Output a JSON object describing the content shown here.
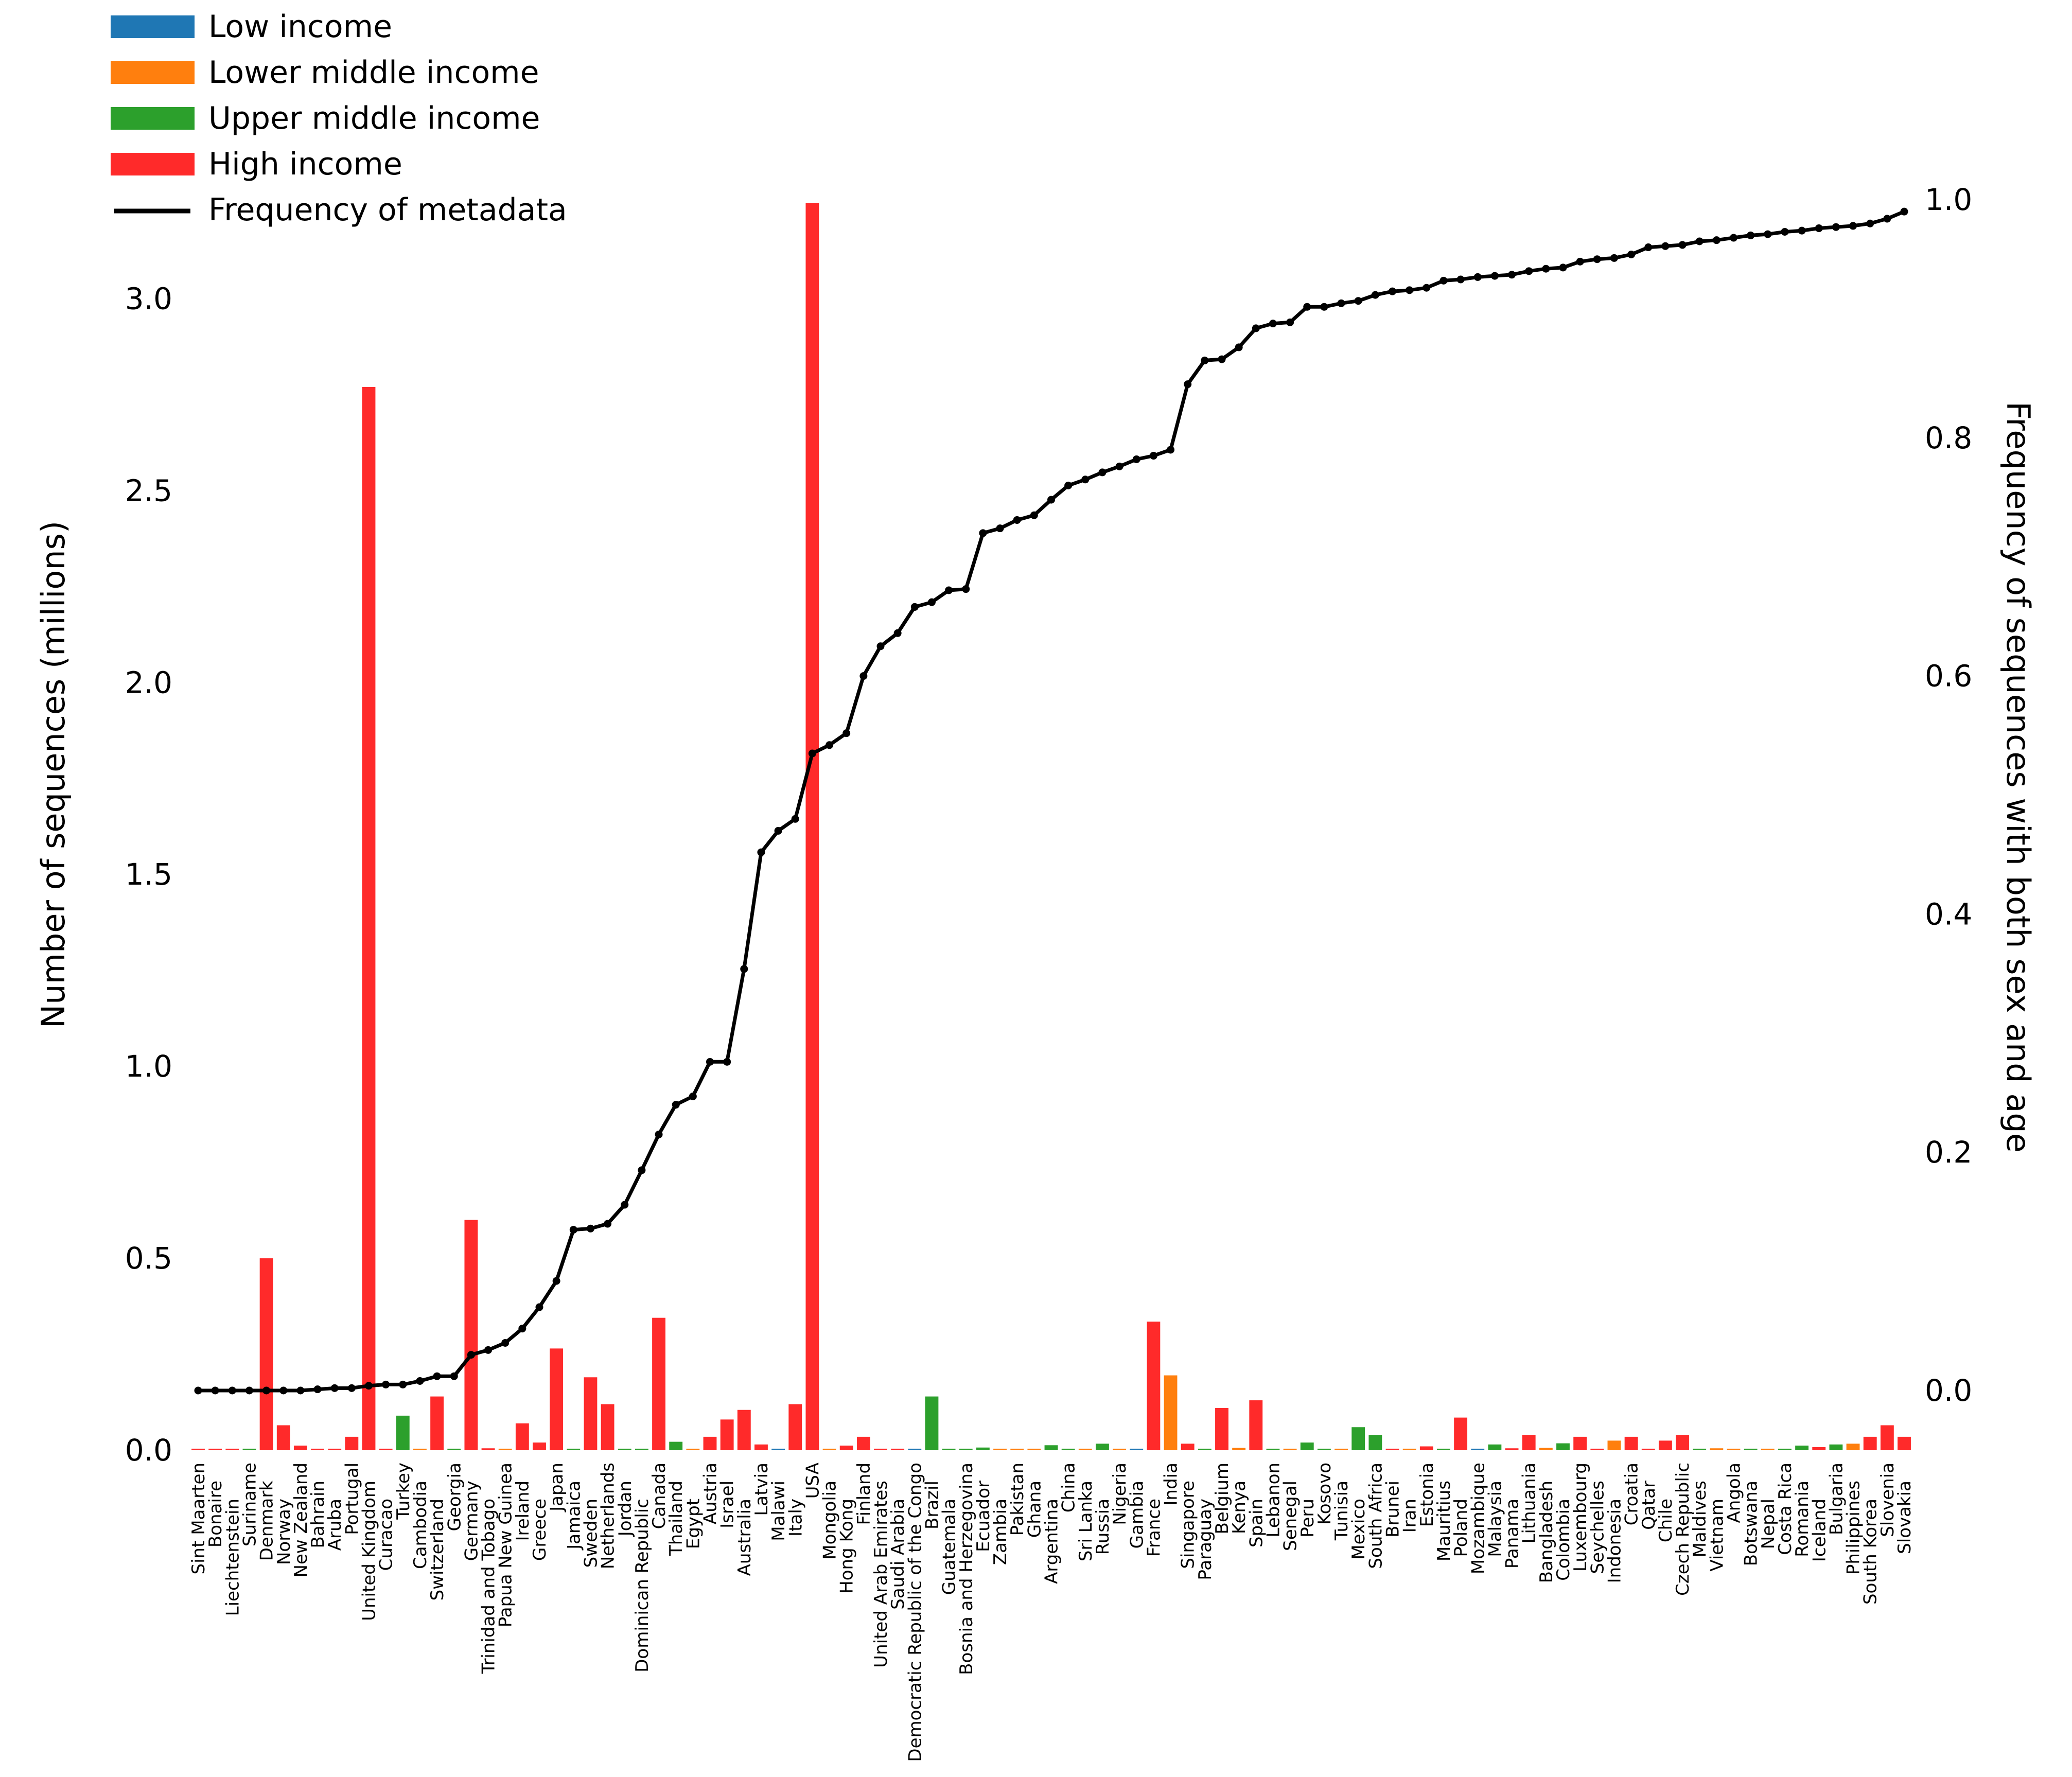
{
  "chart_data": {
    "type": "bar",
    "title": "",
    "xlabel": "",
    "ylabel": "Number of sequences (millions)",
    "y2label": "Frequency of sequences with both sex and age",
    "ylim": [
      0,
      3.25
    ],
    "y2lim": [
      -0.05,
      1.0
    ],
    "yticks": [
      "0.0",
      "0.5",
      "1.0",
      "1.5",
      "2.0",
      "2.5",
      "3.0"
    ],
    "y2ticks": [
      "0.0",
      "0.2",
      "0.4",
      "0.6",
      "0.8",
      "1.0"
    ],
    "grid": false,
    "legend_position": "top-left",
    "legend": [
      {
        "label": "Low income",
        "color": "#1f77b4",
        "kind": "bar"
      },
      {
        "label": "Lower middle income",
        "color": "#ff7f0e",
        "kind": "bar"
      },
      {
        "label": "Upper middle income",
        "color": "#2ca02c",
        "kind": "bar"
      },
      {
        "label": "High income",
        "color": "#ff2a2a",
        "kind": "bar"
      },
      {
        "label": "Frequency of metadata",
        "color": "#000000",
        "kind": "line"
      }
    ],
    "income_colors": {
      "L": "#1f77b4",
      "LM": "#ff7f0e",
      "UM": "#2ca02c",
      "H": "#ff2a2a"
    },
    "line_series": {
      "name": "Frequency of metadata",
      "axis": "right"
    },
    "countries": [
      {
        "name": "Sint Maarten",
        "income": "H",
        "value": 0.003,
        "cum": 0.0
      },
      {
        "name": "Bonaire",
        "income": "H",
        "value": 0.001,
        "cum": 0.0
      },
      {
        "name": "Liechtenstein",
        "income": "H",
        "value": 0.001,
        "cum": 0.0
      },
      {
        "name": "Suriname",
        "income": "UM",
        "value": 0.002,
        "cum": 0.0
      },
      {
        "name": "Denmark",
        "income": "H",
        "value": 0.5,
        "cum": 0.0
      },
      {
        "name": "Norway",
        "income": "H",
        "value": 0.065,
        "cum": 0.0
      },
      {
        "name": "New Zealand",
        "income": "H",
        "value": 0.012,
        "cum": 0.0
      },
      {
        "name": "Bahrain",
        "income": "H",
        "value": 0.004,
        "cum": 0.001
      },
      {
        "name": "Aruba",
        "income": "H",
        "value": 0.003,
        "cum": 0.002
      },
      {
        "name": "Portugal",
        "income": "H",
        "value": 0.035,
        "cum": 0.002
      },
      {
        "name": "United Kingdom",
        "income": "H",
        "value": 2.77,
        "cum": 0.004
      },
      {
        "name": "Curacao",
        "income": "H",
        "value": 0.003,
        "cum": 0.005
      },
      {
        "name": "Turkey",
        "income": "UM",
        "value": 0.09,
        "cum": 0.005
      },
      {
        "name": "Cambodia",
        "income": "LM",
        "value": 0.003,
        "cum": 0.008
      },
      {
        "name": "Switzerland",
        "income": "H",
        "value": 0.14,
        "cum": 0.012
      },
      {
        "name": "Georgia",
        "income": "UM",
        "value": 0.003,
        "cum": 0.012
      },
      {
        "name": "Germany",
        "income": "H",
        "value": 0.6,
        "cum": 0.03
      },
      {
        "name": "Trinidad and Tobago",
        "income": "H",
        "value": 0.005,
        "cum": 0.034
      },
      {
        "name": "Papua New Guinea",
        "income": "LM",
        "value": 0.002,
        "cum": 0.04
      },
      {
        "name": "Ireland",
        "income": "H",
        "value": 0.07,
        "cum": 0.052
      },
      {
        "name": "Greece",
        "income": "H",
        "value": 0.02,
        "cum": 0.07
      },
      {
        "name": "Japan",
        "income": "H",
        "value": 0.265,
        "cum": 0.092
      },
      {
        "name": "Jamaica",
        "income": "UM",
        "value": 0.003,
        "cum": 0.135
      },
      {
        "name": "Sweden",
        "income": "H",
        "value": 0.19,
        "cum": 0.136
      },
      {
        "name": "Netherlands",
        "income": "H",
        "value": 0.12,
        "cum": 0.14
      },
      {
        "name": "Jordan",
        "income": "UM",
        "value": 0.003,
        "cum": 0.156
      },
      {
        "name": "Dominican Republic",
        "income": "UM",
        "value": 0.003,
        "cum": 0.185
      },
      {
        "name": "Canada",
        "income": "H",
        "value": 0.345,
        "cum": 0.215
      },
      {
        "name": "Thailand",
        "income": "UM",
        "value": 0.022,
        "cum": 0.24
      },
      {
        "name": "Egypt",
        "income": "LM",
        "value": 0.004,
        "cum": 0.247
      },
      {
        "name": "Austria",
        "income": "H",
        "value": 0.035,
        "cum": 0.276
      },
      {
        "name": "Israel",
        "income": "H",
        "value": 0.08,
        "cum": 0.276
      },
      {
        "name": "Australia",
        "income": "H",
        "value": 0.105,
        "cum": 0.354
      },
      {
        "name": "Latvia",
        "income": "H",
        "value": 0.015,
        "cum": 0.452
      },
      {
        "name": "Malawi",
        "income": "L",
        "value": 0.002,
        "cum": 0.47
      },
      {
        "name": "Italy",
        "income": "H",
        "value": 0.12,
        "cum": 0.48
      },
      {
        "name": "USA",
        "income": "H",
        "value": 3.25,
        "cum": 0.535
      },
      {
        "name": "Mongolia",
        "income": "LM",
        "value": 0.004,
        "cum": 0.542
      },
      {
        "name": "Hong Kong",
        "income": "H",
        "value": 0.012,
        "cum": 0.552
      },
      {
        "name": "Finland",
        "income": "H",
        "value": 0.035,
        "cum": 0.6
      },
      {
        "name": "United Arab Emirates",
        "income": "H",
        "value": 0.003,
        "cum": 0.625
      },
      {
        "name": "Saudi Arabia",
        "income": "H",
        "value": 0.003,
        "cum": 0.636
      },
      {
        "name": "Democratic Republic of the Congo",
        "income": "L",
        "value": 0.002,
        "cum": 0.658
      },
      {
        "name": "Brazil",
        "income": "UM",
        "value": 0.14,
        "cum": 0.662
      },
      {
        "name": "Guatemala",
        "income": "UM",
        "value": 0.003,
        "cum": 0.672
      },
      {
        "name": "Bosnia and Herzegovina",
        "income": "UM",
        "value": 0.002,
        "cum": 0.673
      },
      {
        "name": "Ecuador",
        "income": "UM",
        "value": 0.007,
        "cum": 0.72
      },
      {
        "name": "Zambia",
        "income": "LM",
        "value": 0.003,
        "cum": 0.724
      },
      {
        "name": "Pakistan",
        "income": "LM",
        "value": 0.003,
        "cum": 0.731
      },
      {
        "name": "Ghana",
        "income": "LM",
        "value": 0.004,
        "cum": 0.735
      },
      {
        "name": "Argentina",
        "income": "UM",
        "value": 0.013,
        "cum": 0.748
      },
      {
        "name": "China",
        "income": "UM",
        "value": 0.004,
        "cum": 0.76
      },
      {
        "name": "Sri Lanka",
        "income": "LM",
        "value": 0.003,
        "cum": 0.765
      },
      {
        "name": "Russia",
        "income": "UM",
        "value": 0.017,
        "cum": 0.771
      },
      {
        "name": "Nigeria",
        "income": "LM",
        "value": 0.004,
        "cum": 0.776
      },
      {
        "name": "Gambia",
        "income": "L",
        "value": 0.002,
        "cum": 0.782
      },
      {
        "name": "France",
        "income": "H",
        "value": 0.335,
        "cum": 0.785
      },
      {
        "name": "India",
        "income": "LM",
        "value": 0.195,
        "cum": 0.79
      },
      {
        "name": "Singapore",
        "income": "H",
        "value": 0.017,
        "cum": 0.845
      },
      {
        "name": "Paraguay",
        "income": "UM",
        "value": 0.004,
        "cum": 0.865
      },
      {
        "name": "Belgium",
        "income": "H",
        "value": 0.11,
        "cum": 0.866
      },
      {
        "name": "Kenya",
        "income": "LM",
        "value": 0.006,
        "cum": 0.876
      },
      {
        "name": "Spain",
        "income": "H",
        "value": 0.13,
        "cum": 0.892
      },
      {
        "name": "Lebanon",
        "income": "UM",
        "value": 0.003,
        "cum": 0.896
      },
      {
        "name": "Senegal",
        "income": "LM",
        "value": 0.003,
        "cum": 0.897
      },
      {
        "name": "Peru",
        "income": "UM",
        "value": 0.02,
        "cum": 0.91
      },
      {
        "name": "Kosovo",
        "income": "UM",
        "value": 0.003,
        "cum": 0.91
      },
      {
        "name": "Tunisia",
        "income": "LM",
        "value": 0.003,
        "cum": 0.913
      },
      {
        "name": "Mexico",
        "income": "UM",
        "value": 0.06,
        "cum": 0.915
      },
      {
        "name": "South Africa",
        "income": "UM",
        "value": 0.04,
        "cum": 0.92
      },
      {
        "name": "Brunei",
        "income": "H",
        "value": 0.003,
        "cum": 0.923
      },
      {
        "name": "Iran",
        "income": "LM",
        "value": 0.003,
        "cum": 0.924
      },
      {
        "name": "Estonia",
        "income": "H",
        "value": 0.01,
        "cum": 0.926
      },
      {
        "name": "Mauritius",
        "income": "UM",
        "value": 0.003,
        "cum": 0.932
      },
      {
        "name": "Poland",
        "income": "H",
        "value": 0.085,
        "cum": 0.933
      },
      {
        "name": "Mozambique",
        "income": "L",
        "value": 0.002,
        "cum": 0.935
      },
      {
        "name": "Malaysia",
        "income": "UM",
        "value": 0.015,
        "cum": 0.936
      },
      {
        "name": "Panama",
        "income": "H",
        "value": 0.005,
        "cum": 0.937
      },
      {
        "name": "Lithuania",
        "income": "H",
        "value": 0.04,
        "cum": 0.94
      },
      {
        "name": "Bangladesh",
        "income": "LM",
        "value": 0.006,
        "cum": 0.942
      },
      {
        "name": "Colombia",
        "income": "UM",
        "value": 0.018,
        "cum": 0.943
      },
      {
        "name": "Luxembourg",
        "income": "H",
        "value": 0.035,
        "cum": 0.948
      },
      {
        "name": "Seychelles",
        "income": "H",
        "value": 0.003,
        "cum": 0.95
      },
      {
        "name": "Indonesia",
        "income": "LM",
        "value": 0.025,
        "cum": 0.951
      },
      {
        "name": "Croatia",
        "income": "H",
        "value": 0.035,
        "cum": 0.954
      },
      {
        "name": "Qatar",
        "income": "H",
        "value": 0.004,
        "cum": 0.96
      },
      {
        "name": "Chile",
        "income": "H",
        "value": 0.025,
        "cum": 0.961
      },
      {
        "name": "Czech Republic",
        "income": "H",
        "value": 0.04,
        "cum": 0.962
      },
      {
        "name": "Maldives",
        "income": "UM",
        "value": 0.003,
        "cum": 0.965
      },
      {
        "name": "Vietnam",
        "income": "LM",
        "value": 0.005,
        "cum": 0.966
      },
      {
        "name": "Angola",
        "income": "LM",
        "value": 0.003,
        "cum": 0.968
      },
      {
        "name": "Botswana",
        "income": "UM",
        "value": 0.003,
        "cum": 0.97
      },
      {
        "name": "Nepal",
        "income": "LM",
        "value": 0.003,
        "cum": 0.971
      },
      {
        "name": "Costa Rica",
        "income": "UM",
        "value": 0.003,
        "cum": 0.973
      },
      {
        "name": "Romania",
        "income": "UM",
        "value": 0.012,
        "cum": 0.974
      },
      {
        "name": "Iceland",
        "income": "H",
        "value": 0.008,
        "cum": 0.976
      },
      {
        "name": "Bulgaria",
        "income": "UM",
        "value": 0.015,
        "cum": 0.977
      },
      {
        "name": "Philippines",
        "income": "LM",
        "value": 0.017,
        "cum": 0.978
      },
      {
        "name": "South Korea",
        "income": "H",
        "value": 0.035,
        "cum": 0.98
      },
      {
        "name": "Slovenia",
        "income": "H",
        "value": 0.065,
        "cum": 0.984
      },
      {
        "name": "Slovakia",
        "income": "H",
        "value": 0.035,
        "cum": 0.99
      }
    ]
  }
}
